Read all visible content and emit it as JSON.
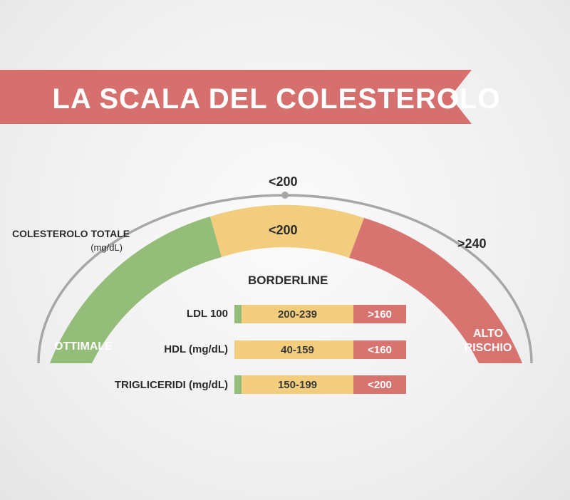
{
  "title": "LA SCALA DEL COLESTEROLO",
  "colors": {
    "banner": "#d6706e",
    "optimal": "#93bd78",
    "borderline": "#f1cd7d",
    "high_risk": "#d77470",
    "outline": "#a7a7a7"
  },
  "gauge": {
    "top_marker": "<200",
    "total_label": "COLESTEROLO TOTALE",
    "total_unit": "(mg/dL)",
    "middle_value": "<200",
    "right_value": ">240",
    "optimal_label": "OTTIMALE",
    "high_risk_label_line1": "ALTO",
    "high_risk_label_line2": "RISCHIO",
    "borderline_heading": "BORDERLINE"
  },
  "rows": [
    {
      "label": "LDL 100",
      "borderline": "200-239",
      "high": ">160"
    },
    {
      "label": "HDL  (mg/dL)",
      "borderline": "40-159",
      "high": "<160"
    },
    {
      "label": "TRIGLICERIDI  (mg/dL)",
      "borderline": "150-199",
      "high": "<200"
    }
  ]
}
